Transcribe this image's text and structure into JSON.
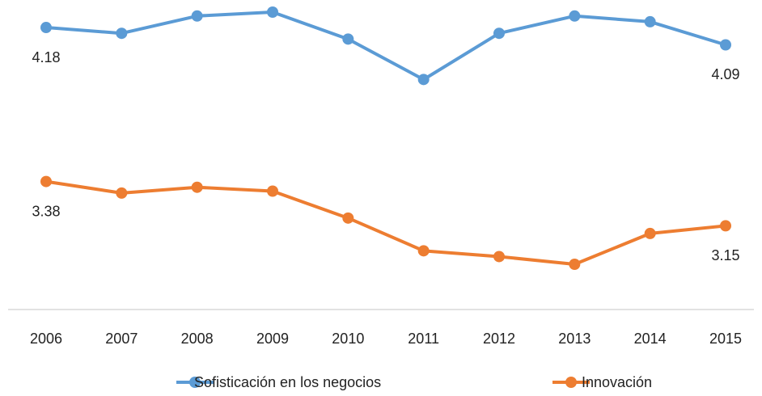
{
  "chart_data": {
    "type": "line",
    "categories": [
      "2006",
      "2007",
      "2008",
      "2009",
      "2010",
      "2011",
      "2012",
      "2013",
      "2014",
      "2015"
    ],
    "series": [
      {
        "name": "Sofisticación en los negocios",
        "color": "#5b9bd5",
        "values": [
          4.18,
          4.15,
          4.24,
          4.26,
          4.12,
          3.91,
          4.15,
          4.24,
          4.21,
          4.09
        ]
      },
      {
        "name": "Innovación",
        "color": "#ed7d31",
        "values": [
          3.38,
          3.32,
          3.35,
          3.33,
          3.19,
          3.02,
          2.99,
          2.95,
          3.11,
          3.15
        ]
      }
    ]
  }
}
